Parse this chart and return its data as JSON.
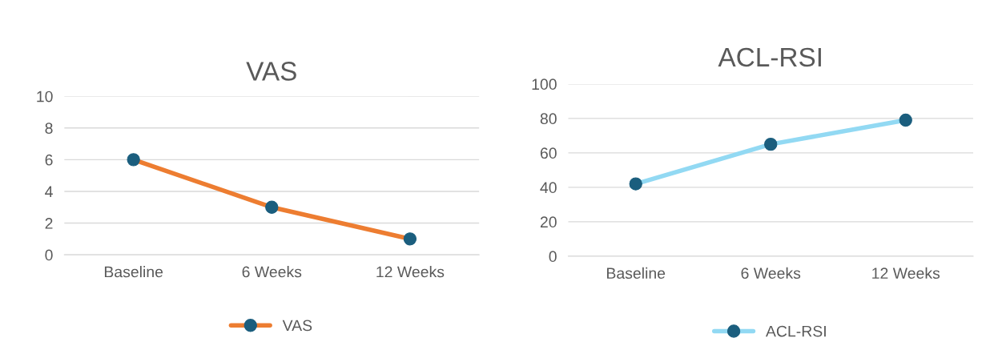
{
  "chart_data": [
    {
      "type": "line",
      "title": "VAS",
      "categories": [
        "Baseline",
        "6 Weeks",
        "12 Weeks"
      ],
      "series": [
        {
          "name": "VAS",
          "color": "#ed7d31",
          "values": [
            6,
            3,
            1
          ]
        }
      ],
      "ylim": [
        0,
        10
      ],
      "yticks": [
        0,
        2,
        4,
        6,
        8,
        10
      ],
      "grid": "y",
      "legend": "bottom",
      "marker": "circle"
    },
    {
      "type": "line",
      "title": "ACL-RSI",
      "categories": [
        "Baseline",
        "6 Weeks",
        "12 Weeks"
      ],
      "series": [
        {
          "name": "ACL-RSI",
          "color": "#92d9f3",
          "values": [
            42,
            65,
            79
          ]
        }
      ],
      "ylim": [
        0,
        100
      ],
      "yticks": [
        0,
        20,
        40,
        60,
        80,
        100
      ],
      "grid": "y",
      "legend": "bottom",
      "marker": "circle"
    }
  ]
}
